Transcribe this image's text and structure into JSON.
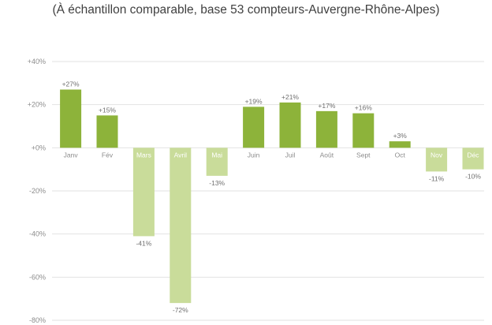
{
  "chart_data": {
    "type": "bar",
    "title": "",
    "subtitle": "(À échantillon comparable, base 53 compteurs-Auvergne-Rhône-Alpes)",
    "categories": [
      "Janv",
      "Fév",
      "Mars",
      "Avril",
      "Mai",
      "Juin",
      "Juil",
      "Août",
      "Sept",
      "Oct",
      "Nov",
      "Déc"
    ],
    "values": [
      27,
      15,
      -41,
      -72,
      -13,
      19,
      21,
      17,
      16,
      3,
      -11,
      -10
    ],
    "data_labels": [
      "+27%",
      "+15%",
      "-41%",
      "-72%",
      "-13%",
      "+19%",
      "+21%",
      "+17%",
      "+16%",
      "+3%",
      "-11%",
      "-10%"
    ],
    "y_ticks": [
      {
        "value": 40,
        "label": "+40%"
      },
      {
        "value": 20,
        "label": "+20%"
      },
      {
        "value": 0,
        "label": "+0%"
      },
      {
        "value": -20,
        "label": "-20%"
      },
      {
        "value": -40,
        "label": "-40%"
      },
      {
        "value": -60,
        "label": "-60%"
      },
      {
        "value": -80,
        "label": "-80%"
      }
    ],
    "ylim": [
      -80,
      40
    ],
    "grid": true,
    "colors": {
      "positive": "#8db33a",
      "negative": "#c9dc9a",
      "grid": "#e2e2e2",
      "title": "#8db33a"
    }
  }
}
